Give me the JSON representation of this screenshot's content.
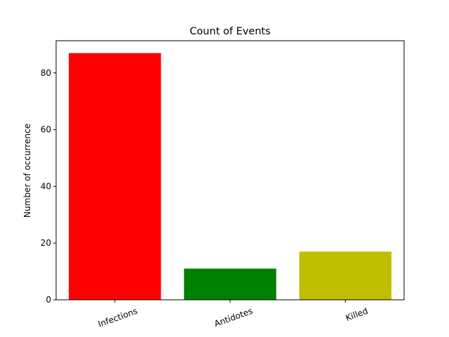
{
  "chart_data": {
    "type": "bar",
    "title": "Count of Events",
    "xlabel": "",
    "ylabel": "Number of occurrence",
    "categories": [
      "Infections",
      "Antidotes",
      "Killed"
    ],
    "values": [
      87,
      11,
      17
    ],
    "colors": [
      "#ff0000",
      "#008000",
      "#bfbf00"
    ],
    "ylim": [
      0,
      91.35
    ],
    "yticks": [
      0,
      20,
      40,
      60,
      80
    ],
    "grid": false,
    "legend": "none",
    "xtick_rotation_deg": -20
  }
}
